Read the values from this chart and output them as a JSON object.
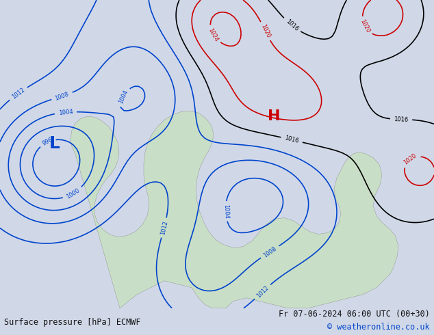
{
  "title_left": "Surface pressure [hPa] ECMWF",
  "title_right": "Fr 07-06-2024 06:00 UTC (00+30)",
  "copyright": "© weatheronline.co.uk",
  "bg_color": "#d0d8e8",
  "land_color": "#c8e0c0",
  "text_color_black": "#000000",
  "text_color_blue": "#0000cc",
  "text_color_red": "#cc0000",
  "footer_bg": "#e8eef8",
  "contour_black": "#000000",
  "contour_blue": "#0044cc",
  "contour_red": "#cc0000",
  "figsize": [
    6.34,
    4.9
  ],
  "dpi": 100
}
